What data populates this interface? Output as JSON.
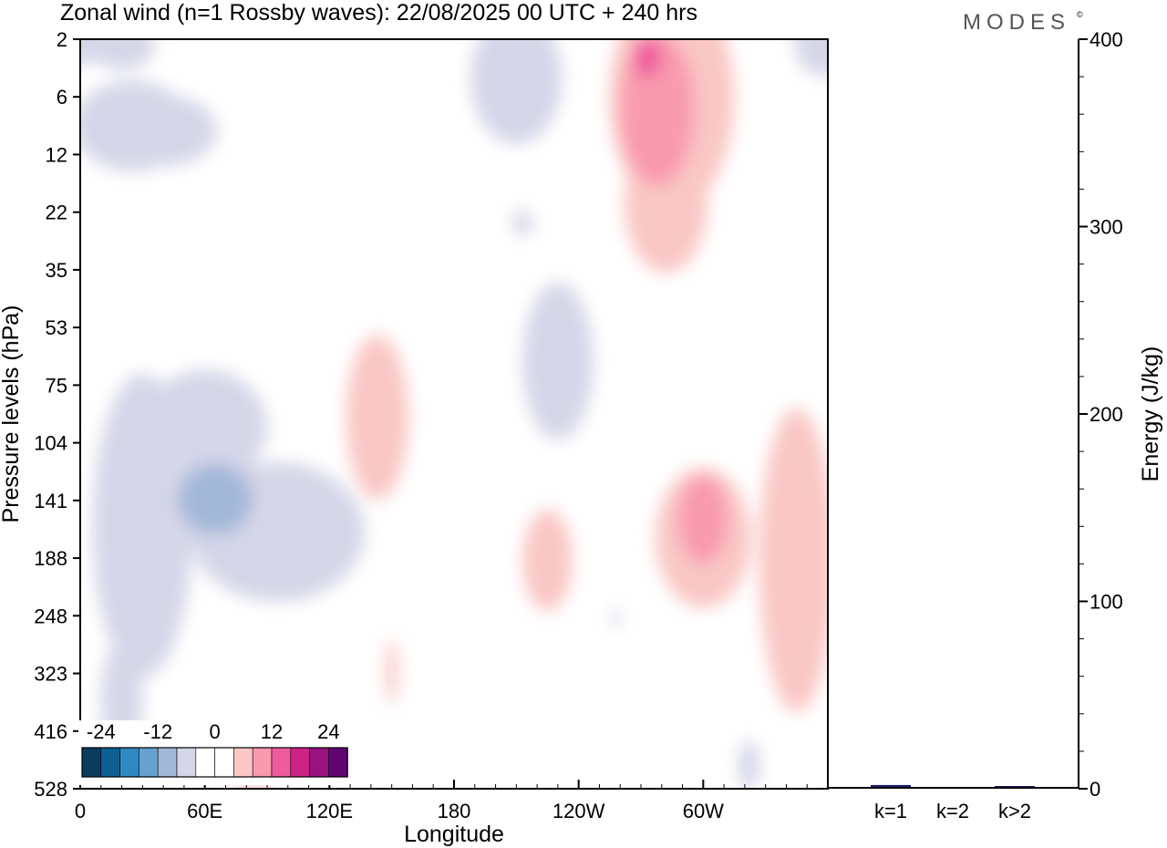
{
  "title": "Zonal wind (n=1 Rossby waves):  22/08/2025  00 UTC  + 240 hrs",
  "brand": "MODES",
  "brand_mark": "©",
  "chart_data": [
    {
      "type": "heatmap",
      "ylabel": "Pressure levels (hPa)",
      "xlabel": "Longitude",
      "y_ticks": [
        "2",
        "6",
        "12",
        "22",
        "35",
        "53",
        "75",
        "104",
        "141",
        "188",
        "248",
        "323",
        "416",
        "528"
      ],
      "x_ticks": [
        "0",
        "60E",
        "120E",
        "180",
        "120W",
        "60W"
      ],
      "x_tick_positions_deg": [
        0,
        60,
        120,
        180,
        240,
        300
      ],
      "x_range_deg": [
        0,
        360
      ],
      "y_scale": "log",
      "colorbar": {
        "labels": [
          "-24",
          "-12",
          "0",
          "12",
          "24"
        ],
        "colors": [
          "#0b3b5e",
          "#0d5f93",
          "#2e89c2",
          "#66a2cf",
          "#a3b8d9",
          "#d5d6e8",
          "#ffffff",
          "#ffffff",
          "#f9c7c4",
          "#f99aaf",
          "#ef5b9f",
          "#cc2288",
          "#99127e",
          "#5e0670"
        ],
        "placement": "bottom-left"
      },
      "fields": [
        {
          "lon": 0,
          "lev": 2,
          "level": -1,
          "rx": 12,
          "ry": 0.2
        },
        {
          "lon": 20,
          "lev": 2.3,
          "level": -1,
          "rx": 16,
          "ry": 0.18
        },
        {
          "lon": 25,
          "lev": 8.5,
          "level": -1,
          "rx": 28,
          "ry": 0.36
        },
        {
          "lon": 40,
          "lev": 9,
          "level": -1,
          "rx": 26,
          "ry": 0.28
        },
        {
          "lon": 210,
          "lev": 4.2,
          "level": -1,
          "rx": 22,
          "ry": 0.52
        },
        {
          "lon": 358,
          "lev": 2.2,
          "level": -1,
          "rx": 14,
          "ry": 0.25
        },
        {
          "lon": 213,
          "lev": 24,
          "level": -1,
          "rx": 5,
          "ry": 0.1
        },
        {
          "lon": 230,
          "lev": 65,
          "level": -1,
          "rx": 17,
          "ry": 0.62
        },
        {
          "lon": 30,
          "lev": 160,
          "level": -1,
          "rx": 24,
          "ry": 1.2
        },
        {
          "lon": 95,
          "lev": 165,
          "level": -1,
          "rx": 42,
          "ry": 0.55
        },
        {
          "lon": 60,
          "lev": 95,
          "level": -1,
          "rx": 30,
          "ry": 0.45
        },
        {
          "lon": 20,
          "lev": 360,
          "level": -1,
          "rx": 10,
          "ry": 0.45
        },
        {
          "lon": 322,
          "lev": 480,
          "level": -1,
          "rx": 5,
          "ry": 0.2
        },
        {
          "lon": 258,
          "lev": 250,
          "level": -1,
          "rx": 2,
          "ry": 0.08
        },
        {
          "lon": 65,
          "lev": 140,
          "level": -2,
          "rx": 18,
          "ry": 0.28
        },
        {
          "lon": 285,
          "lev": 6,
          "level": 1,
          "rx": 30,
          "ry": 0.9
        },
        {
          "lon": 282,
          "lev": 20,
          "level": 1,
          "rx": 20,
          "ry": 0.55
        },
        {
          "lon": 278,
          "lev": 7,
          "level": 2,
          "rx": 18,
          "ry": 0.6
        },
        {
          "lon": 273,
          "lev": 2.8,
          "level": 3,
          "rx": 7,
          "ry": 0.16
        },
        {
          "lon": 143,
          "lev": 90,
          "level": 1,
          "rx": 15,
          "ry": 0.65
        },
        {
          "lon": 225,
          "lev": 190,
          "level": 1,
          "rx": 12,
          "ry": 0.4
        },
        {
          "lon": 300,
          "lev": 170,
          "level": 1,
          "rx": 23,
          "ry": 0.55
        },
        {
          "lon": 345,
          "lev": 190,
          "level": 1,
          "rx": 18,
          "ry": 1.2
        },
        {
          "lon": 150,
          "lev": 320,
          "level": 1,
          "rx": 3,
          "ry": 0.25
        },
        {
          "lon": 83,
          "lev": 528,
          "level": 1,
          "rx": 11,
          "ry": 0.05
        },
        {
          "lon": 300,
          "lev": 155,
          "level": 2,
          "rx": 12,
          "ry": 0.35
        }
      ]
    },
    {
      "type": "bar",
      "categories": [
        "k=1",
        "k=2",
        "k>2"
      ],
      "values": [
        1.5,
        0,
        0.8
      ],
      "ylabel": "Energy (J/kg)",
      "ylim": [
        0,
        400
      ],
      "y_ticks": [
        0,
        100,
        200,
        300,
        400
      ],
      "color": "#1a1a6e"
    }
  ]
}
